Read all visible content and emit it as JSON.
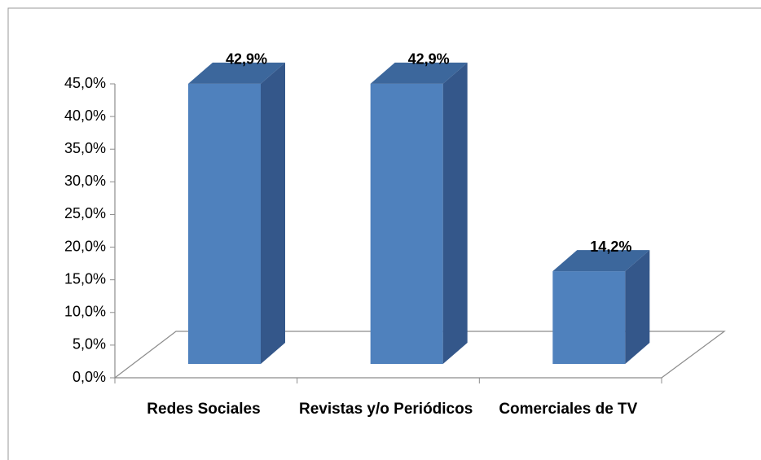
{
  "chart_data": {
    "type": "bar3d",
    "categories": [
      "Redes Sociales",
      "Revistas y/o Periódicos",
      "Comerciales de TV"
    ],
    "values": [
      42.9,
      42.9,
      14.2
    ],
    "value_labels": [
      "42,9%",
      "42,9%",
      "14,2%"
    ],
    "color": "#4f81bd",
    "ylim": [
      0,
      45
    ],
    "yticks": [
      {
        "value": 0,
        "label": "0,0%"
      },
      {
        "value": 5,
        "label": "5,0%"
      },
      {
        "value": 10,
        "label": "10,0%"
      },
      {
        "value": 15,
        "label": "15,0%"
      },
      {
        "value": 20,
        "label": "20,0%"
      },
      {
        "value": 25,
        "label": "25,0%"
      },
      {
        "value": 30,
        "label": "30,0%"
      },
      {
        "value": 35,
        "label": "35,0%"
      },
      {
        "value": 40,
        "label": "40,0%"
      },
      {
        "value": 45,
        "label": "45,0%"
      }
    ]
  }
}
